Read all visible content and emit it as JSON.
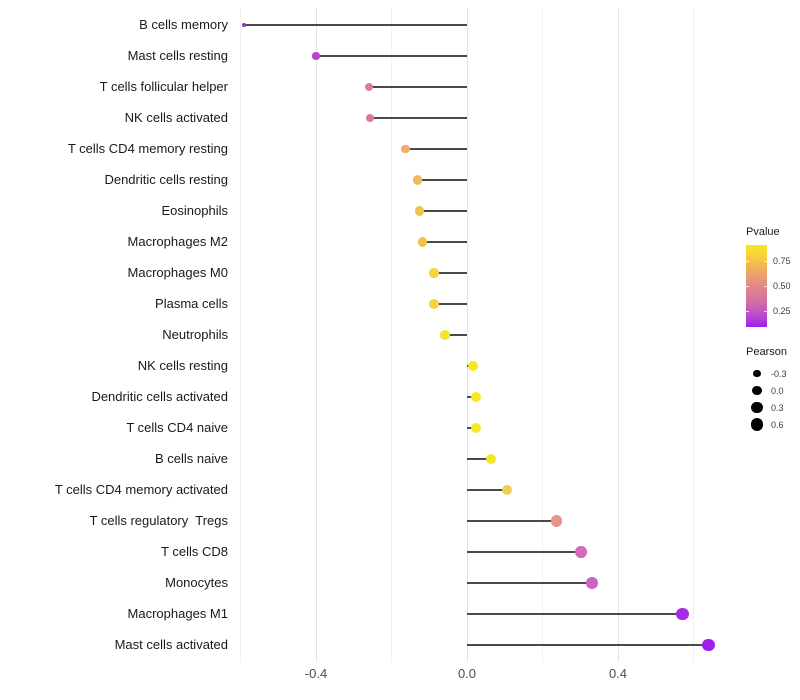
{
  "chart_data": {
    "type": "scatter",
    "subtype": "lollipop",
    "title": "",
    "xlabel": "",
    "ylabel": "",
    "grid": "vertical-only",
    "xlim": [
      -0.61,
      0.7
    ],
    "x_major_ticks": [
      -0.4,
      0.0,
      0.4
    ],
    "x_major_tick_labels": [
      "-0.4",
      "0.0",
      "0.4"
    ],
    "x_minor_ticks": [
      -0.6,
      -0.2,
      0.2,
      0.6
    ],
    "stem_color": "#4a4a4a",
    "categories": [
      "B cells memory",
      "Mast cells resting",
      "T cells follicular helper",
      "NK cells activated",
      "T cells CD4 memory resting",
      "Dendritic cells resting",
      "Eosinophils",
      "Macrophages M2",
      "Macrophages M0",
      "Plasma cells",
      "Neutrophils",
      "NK cells resting",
      "Dendritic cells activated",
      "T cells CD4 naive",
      "B cells naive",
      "T cells CD4 memory activated",
      "T cells regulatory  Tregs",
      "T cells CD8",
      "Monocytes",
      "Macrophages M1",
      "Mast cells activated"
    ],
    "points": [
      {
        "label": "B cells memory",
        "pearson": -0.59,
        "pvalue_approx": 0.1,
        "color": "#9335d9"
      },
      {
        "label": "Mast cells resting",
        "pearson": -0.4,
        "pvalue_approx": 0.18,
        "color": "#b843cf"
      },
      {
        "label": "T cells follicular helper",
        "pearson": -0.26,
        "pvalue_approx": 0.45,
        "color": "#de7d92"
      },
      {
        "label": "NK cells activated",
        "pearson": -0.257,
        "pvalue_approx": 0.44,
        "color": "#dd7a90"
      },
      {
        "label": "T cells CD4 memory resting",
        "pearson": -0.162,
        "pvalue_approx": 0.68,
        "color": "#efae63"
      },
      {
        "label": "Dendritic cells resting",
        "pearson": -0.132,
        "pvalue_approx": 0.73,
        "color": "#f0b95b"
      },
      {
        "label": "Eosinophils",
        "pearson": -0.125,
        "pvalue_approx": 0.77,
        "color": "#eec150"
      },
      {
        "label": "Macrophages M2",
        "pearson": -0.117,
        "pvalue_approx": 0.77,
        "color": "#efc24e"
      },
      {
        "label": "Macrophages M0",
        "pearson": -0.087,
        "pvalue_approx": 0.84,
        "color": "#f3d441"
      },
      {
        "label": "Plasma cells",
        "pearson": -0.087,
        "pvalue_approx": 0.84,
        "color": "#f3d441"
      },
      {
        "label": "Neutrophils",
        "pearson": -0.058,
        "pvalue_approx": 0.9,
        "color": "#f6e52e"
      },
      {
        "label": "NK cells resting",
        "pearson": 0.016,
        "pvalue_approx": 0.91,
        "color": "#f8e821"
      },
      {
        "label": "Dendritic cells activated",
        "pearson": 0.024,
        "pvalue_approx": 0.91,
        "color": "#f8e821"
      },
      {
        "label": "T cells CD4 naive",
        "pearson": 0.024,
        "pvalue_approx": 0.91,
        "color": "#f8e821"
      },
      {
        "label": "B cells naive",
        "pearson": 0.064,
        "pvalue_approx": 0.89,
        "color": "#f7e52a"
      },
      {
        "label": "T cells CD4 memory activated",
        "pearson": 0.106,
        "pvalue_approx": 0.79,
        "color": "#f0ce55"
      },
      {
        "label": "T cells regulatory  Tregs",
        "pearson": 0.238,
        "pvalue_approx": 0.52,
        "color": "#e8938c"
      },
      {
        "label": "T cells CD8",
        "pearson": 0.302,
        "pvalue_approx": 0.3,
        "color": "#d36bb8"
      },
      {
        "label": "Monocytes",
        "pearson": 0.331,
        "pvalue_approx": 0.26,
        "color": "#cc63c6"
      },
      {
        "label": "Macrophages M1",
        "pearson": 0.57,
        "pvalue_approx": 0.12,
        "color": "#a62be8"
      },
      {
        "label": "Mast cells activated",
        "pearson": 0.641,
        "pvalue_approx": 0.09,
        "color": "#9d1fec"
      }
    ],
    "legends": {
      "pvalue": {
        "title": "Pvalue",
        "position": "right",
        "tick_labels": [
          "0.75",
          "0.50",
          "0.25"
        ],
        "tick_values": [
          0.75,
          0.5,
          0.25
        ],
        "scale_range": [
          0.09,
          0.91
        ],
        "gradient_colors_bottom_to_top": [
          "#9d1fec",
          "#b340d4",
          "#c558be",
          "#d26ba9",
          "#db7a97",
          "#e38987",
          "#ea9a74",
          "#f0ac60",
          "#f4c14b",
          "#f7d737",
          "#f9e721"
        ]
      },
      "pearson": {
        "title": "Pearson",
        "position": "right",
        "items": [
          {
            "label": "-0.3",
            "value": -0.3
          },
          {
            "label": "0.0",
            "value": 0.0
          },
          {
            "label": "0.3",
            "value": 0.3
          },
          {
            "label": "0.6",
            "value": 0.6
          }
        ]
      }
    }
  }
}
